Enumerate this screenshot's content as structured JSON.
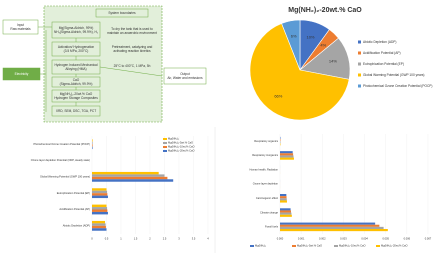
{
  "diagram": {
    "title": "System boundaries",
    "nodes": [
      {
        "lines": [
          "Input",
          "Raw materials"
        ]
      },
      {
        "lines": [
          "Electricity"
        ]
      },
      {
        "lines": [
          "Mg(Sigma-Aldrich, 99%)",
          "NH₃(Sigma-Aldrich, 99.9%), H₂"
        ]
      },
      {
        "lines": [
          "Activation/ Hydrogenation",
          "(3.5 MPa, 200°C)"
        ]
      },
      {
        "lines": [
          "Hydrogen Induced Mechanical",
          "Alloying (HMA)"
        ]
      },
      {
        "lines": [
          "CaO",
          "(Sigma-Aldrich, 99.9%)"
        ]
      },
      {
        "lines": [
          "Mg(NH₂)₂-20wt.% CaO",
          "Hydrogen Storage Composites"
        ]
      },
      {
        "lines": [
          "XRD, SEM, DSC, TGA, PCT"
        ]
      },
      {
        "lines": [
          "To dry the tank that is used to",
          "maintain an anaerobic environment"
        ]
      },
      {
        "lines": [
          "Pretreatment, catalyzing and",
          "activating reaction kinetics"
        ]
      },
      {
        "lines": [
          "25°C to 400°C, 1 MPa, 5h"
        ]
      },
      {
        "lines": [
          "Output",
          "Air, Water and emissions"
        ]
      }
    ]
  },
  "chart_data": [
    {
      "type": "pie",
      "title": "Mg(NH₂)₂-20wt.% CaO",
      "categories": [
        "Abiotic Depletion (ADP)",
        "Acidification Potential (AP)",
        "Eutrophication Potential (EP)",
        "Global Warming Potential (GWP 100 years)",
        "Photochemical Ozone Creation Potential (POCP)"
      ],
      "values": [
        10,
        4,
        14,
        66,
        6
      ],
      "value_labels": [
        "10%",
        "4%",
        "14%",
        "66%",
        "6%"
      ],
      "colors": [
        "#4472c4",
        "#ed7d31",
        "#a5a5a5",
        "#ffc000",
        "#5b9bd5"
      ],
      "legend": "right"
    },
    {
      "type": "hbar",
      "categories": [
        "Photochemical Ozone Creation Potential (POCP)",
        "Ozone layer depletion Potential (ODP, steady state)",
        "Global Warming Potential (GWP 100 years)",
        "Eutrophication Potential (EP)",
        "Acidification Potential (AP)",
        "Abiotic Depletion (ADP)"
      ],
      "series": [
        {
          "name": "Mg(NH₂)₂",
          "color": "#ffc000",
          "values": [
            0.02,
            0.0001,
            2.3,
            0.5,
            0.5,
            0.45
          ]
        },
        {
          "name": "Mg(NH₂)₂-5wt.% CaO",
          "color": "#a5a5a5",
          "values": [
            0.02,
            0.0001,
            2.5,
            0.52,
            0.52,
            0.47
          ]
        },
        {
          "name": "Mg(NH₂)₂-10wt.% CaO",
          "color": "#ed7d31",
          "values": [
            0.02,
            0.0001,
            2.6,
            0.53,
            0.53,
            0.48
          ]
        },
        {
          "name": "Mg(NH₂)₂-20wt.% CaO",
          "color": "#4472c4",
          "values": [
            0.02,
            0.0001,
            2.8,
            0.55,
            0.55,
            0.5
          ]
        }
      ],
      "xlim": [
        0,
        4
      ],
      "xticks": [
        0,
        0.5,
        1,
        1.5,
        2,
        2.5,
        3,
        3.5,
        4
      ],
      "legend": "upper right"
    },
    {
      "type": "hbar",
      "categories": [
        "Respiratory organics",
        "Respiratory inorganics",
        "Human health, Radiation",
        "Ozone layer depletion",
        "Carcinogenic effect",
        "Climate change",
        "Fossil fuels"
      ],
      "series": [
        {
          "name": "Mg(NH₂)₂",
          "color": "#4472c4",
          "values": [
            2e-05,
            0.0006,
            1e-06,
            1e-06,
            0.0003,
            0.0005,
            0.0045
          ]
        },
        {
          "name": "Mg(NH₂)₂-5wt.% CaO",
          "color": "#ed7d31",
          "values": [
            2e-05,
            0.00062,
            1e-06,
            1e-06,
            0.00031,
            0.00052,
            0.0047
          ]
        },
        {
          "name": "Mg(NH₂)₂-10wt.% CaO",
          "color": "#a5a5a5",
          "values": [
            2e-05,
            0.00064,
            1e-06,
            1e-06,
            0.00032,
            0.00054,
            0.0049
          ]
        },
        {
          "name": "Mg(NH₂)₂-20wt.% CaO",
          "color": "#ffc000",
          "values": [
            2e-05,
            0.00066,
            1e-06,
            1e-06,
            0.00033,
            0.00056,
            0.0051
          ]
        }
      ],
      "xlim": [
        0,
        0.007
      ],
      "xticks": [
        {
          "value": 0,
          "label": "0.000"
        },
        {
          "value": 0.001,
          "label": "0.001"
        },
        {
          "value": 0.002,
          "label": "0.002"
        },
        {
          "value": 0.003,
          "label": "0.003"
        },
        {
          "value": 0.004,
          "label": "0.004"
        },
        {
          "value": 0.005,
          "label": "0.005"
        },
        {
          "value": 0.006,
          "label": "0.006"
        },
        {
          "value": 0.007,
          "label": "0.007"
        }
      ],
      "legend": "bottom"
    }
  ]
}
